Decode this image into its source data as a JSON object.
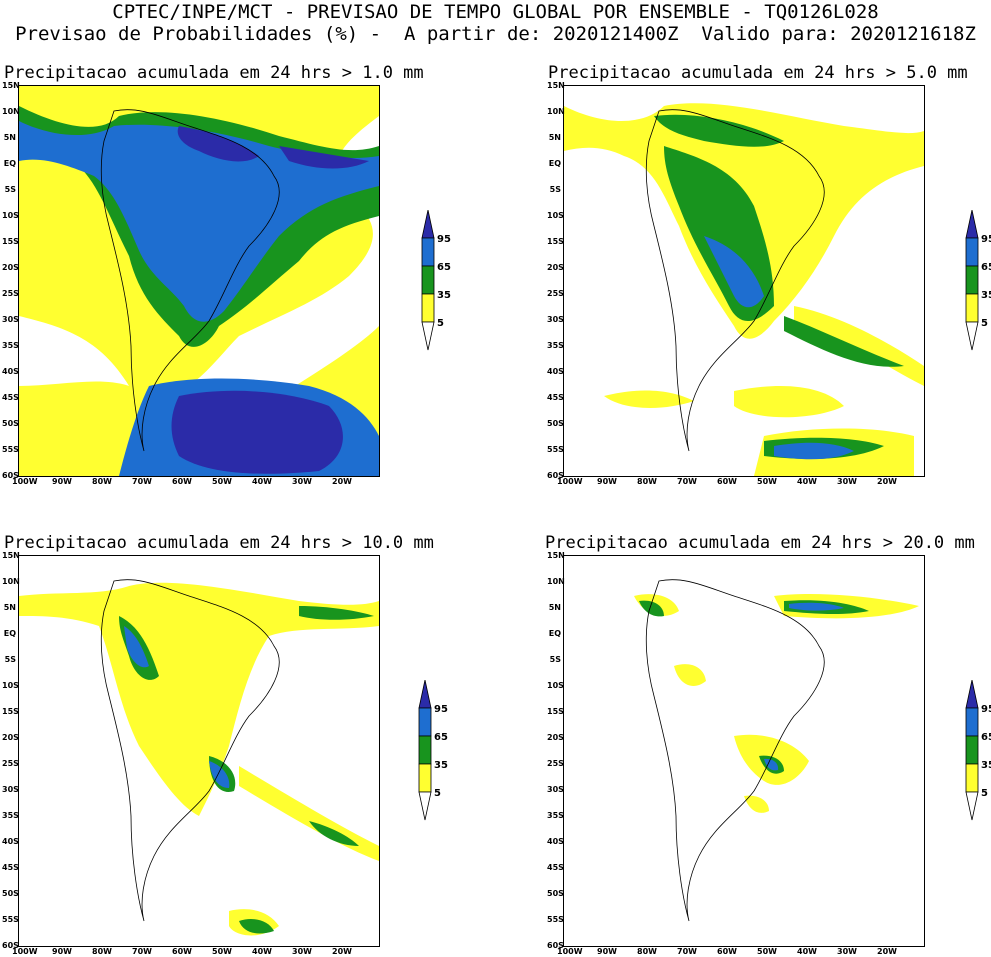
{
  "header": {
    "line1": "CPTEC/INPE/MCT - PREVISAO DE TEMPO GLOBAL POR ENSEMBLE - TQ0126L028",
    "line2": "Previsao de Probabilidades (%) -  A partir de: 2020121400Z  Valido para: 2020121618Z"
  },
  "panels": [
    {
      "title": "Precipitacao acumulada em 24 hrs > 1.0 mm"
    },
    {
      "title": "Precipitacao acumulada em 24 hrs > 5.0 mm"
    },
    {
      "title": "Precipitacao acumulada em 24 hrs > 10.0 mm"
    },
    {
      "title": "Precipitacao acumulada em 24 hrs > 20.0 mm"
    }
  ],
  "axes": {
    "lat_labels": [
      "15N",
      "10N",
      "5N",
      "EQ",
      "5S",
      "10S",
      "15S",
      "20S",
      "25S",
      "30S",
      "35S",
      "40S",
      "45S",
      "50S",
      "55S",
      "60S"
    ],
    "lon_labels": [
      "100W",
      "90W",
      "80W",
      "70W",
      "60W",
      "50W",
      "40W",
      "30W",
      "20W"
    ]
  },
  "legend": {
    "levels": [
      "95",
      "65",
      "35",
      "5"
    ],
    "colors": {
      "c95": "#2b2ba8",
      "c65": "#1e6ed0",
      "c35": "#18941e",
      "c5": "#ffff30"
    }
  }
}
